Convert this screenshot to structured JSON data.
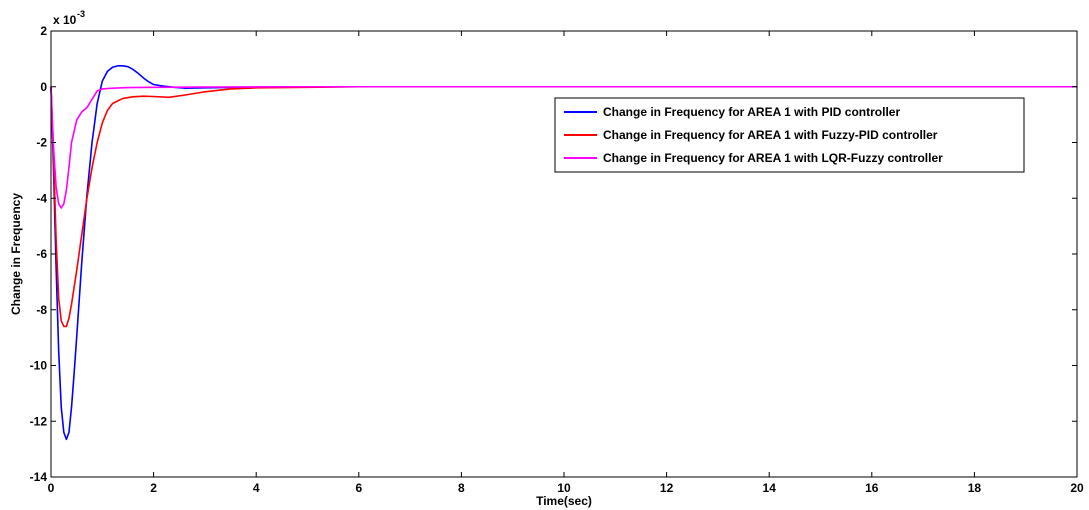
{
  "chart_data": {
    "type": "line",
    "title": "",
    "xlabel": "Time(sec)",
    "ylabel": "Change in Frequency",
    "xlim": [
      0,
      20
    ],
    "ylim": [
      -14,
      2
    ],
    "x_ticks": [
      0,
      2,
      4,
      6,
      8,
      10,
      12,
      14,
      16,
      18,
      20
    ],
    "y_ticks": [
      2,
      0,
      -2,
      -4,
      -6,
      -8,
      -10,
      -12,
      -14
    ],
    "y_exponent_label": "x 10",
    "y_exponent_power": "-3",
    "grid": false,
    "legend_position": "top-right",
    "series": [
      {
        "name": "Change in Frequency for AREA 1 with PID controller",
        "color": "#0000ff",
        "x": [
          0,
          0.05,
          0.1,
          0.15,
          0.2,
          0.25,
          0.3,
          0.35,
          0.4,
          0.45,
          0.5,
          0.6,
          0.7,
          0.8,
          0.9,
          1.0,
          1.1,
          1.2,
          1.3,
          1.4,
          1.5,
          1.6,
          1.7,
          1.8,
          1.9,
          2.0,
          2.2,
          2.4,
          2.6,
          3.0,
          4.0,
          6.0,
          10.0,
          20.0
        ],
        "y": [
          0,
          -3.0,
          -6.5,
          -9.5,
          -11.5,
          -12.4,
          -12.65,
          -12.4,
          -11.5,
          -10.3,
          -9.0,
          -6.3,
          -3.9,
          -2.0,
          -0.6,
          0.2,
          0.55,
          0.7,
          0.75,
          0.75,
          0.72,
          0.62,
          0.48,
          0.32,
          0.18,
          0.08,
          0.02,
          -0.02,
          -0.05,
          -0.04,
          -0.01,
          0,
          0,
          0
        ]
      },
      {
        "name": "Change in Frequency for AREA 1 with Fuzzy-PID controller",
        "color": "#ff0000",
        "x": [
          0,
          0.05,
          0.1,
          0.15,
          0.2,
          0.25,
          0.3,
          0.35,
          0.4,
          0.45,
          0.5,
          0.6,
          0.7,
          0.8,
          0.9,
          1.0,
          1.1,
          1.2,
          1.4,
          1.6,
          1.8,
          2.0,
          2.3,
          2.6,
          3.0,
          3.5,
          4.0,
          5.0,
          6.0,
          10.0,
          20.0
        ],
        "y": [
          0,
          -2.5,
          -5.5,
          -7.6,
          -8.4,
          -8.6,
          -8.6,
          -8.3,
          -7.8,
          -7.2,
          -6.6,
          -5.3,
          -4.0,
          -2.9,
          -2.0,
          -1.3,
          -0.85,
          -0.6,
          -0.42,
          -0.36,
          -0.34,
          -0.35,
          -0.38,
          -0.3,
          -0.18,
          -0.08,
          -0.04,
          -0.02,
          0,
          0,
          0
        ]
      },
      {
        "name": "Change in Frequency for AREA 1 with LQR-Fuzzy controller",
        "color": "#ff00ff",
        "x": [
          0,
          0.05,
          0.1,
          0.15,
          0.2,
          0.25,
          0.3,
          0.35,
          0.4,
          0.5,
          0.6,
          0.7,
          0.8,
          0.9,
          1.0,
          1.2,
          1.5,
          2.0,
          3.0,
          5.0,
          10.0,
          20.0
        ],
        "y": [
          0,
          -2.2,
          -3.6,
          -4.2,
          -4.35,
          -4.2,
          -3.7,
          -2.9,
          -2.0,
          -1.2,
          -0.9,
          -0.75,
          -0.45,
          -0.15,
          -0.08,
          -0.05,
          -0.03,
          -0.02,
          -0.01,
          0,
          0,
          0
        ]
      }
    ]
  }
}
